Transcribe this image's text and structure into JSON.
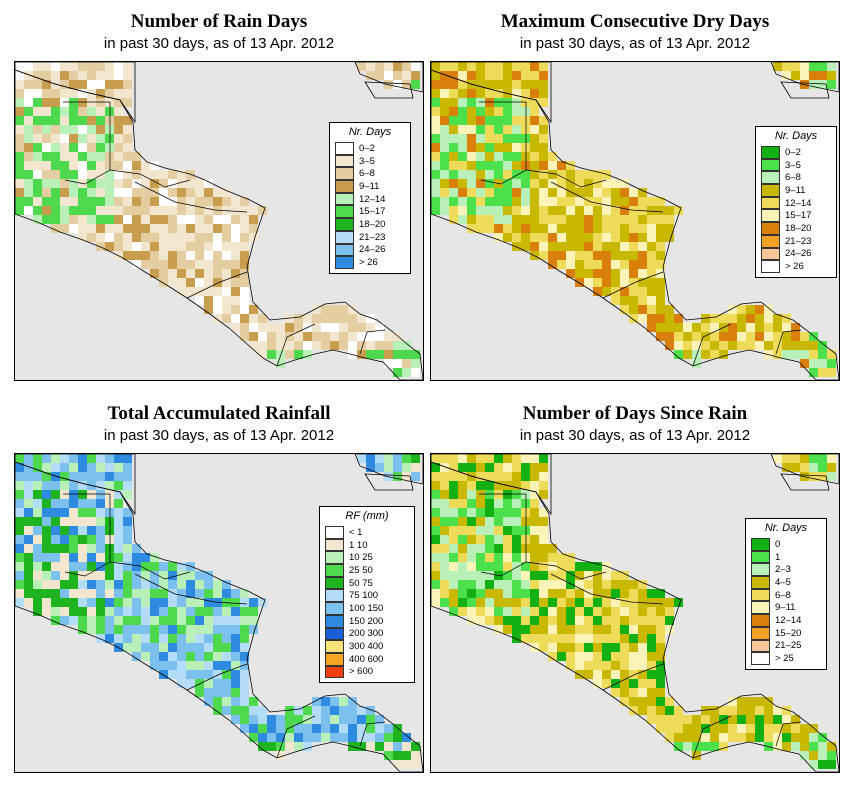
{
  "panels": [
    {
      "title": "Number of Rain Days",
      "subtitle": "in past 30 days, as of  13 Apr. 2012",
      "legend": {
        "title": "Nr. Days",
        "items": [
          {
            "label": "0–2",
            "color": "#ffffff"
          },
          {
            "label": "3–5",
            "color": "#f3e6cf"
          },
          {
            "label": "6–8",
            "color": "#e3cda1"
          },
          {
            "label": "9–11",
            "color": "#c89d4e"
          },
          {
            "label": "12–14",
            "color": "#b8f0b8"
          },
          {
            "label": "15–17",
            "color": "#4ed84e"
          },
          {
            "label": "18–20",
            "color": "#1fb41f"
          },
          {
            "label": "21–23",
            "color": "#b2dcf7"
          },
          {
            "label": "24–26",
            "color": "#7cc0ee"
          },
          {
            "label": "> 26",
            "color": "#2f8be0"
          }
        ]
      },
      "map_palette": [
        "#f3e6cf",
        "#e3cda1",
        "#f3e6cf",
        "#e3cda1",
        "#c89d4e",
        "#ffffff"
      ],
      "map_accent": [
        "#b8f0b8",
        "#4ed84e"
      ]
    },
    {
      "title": "Maximum Consecutive Dry Days",
      "subtitle": "in past 30 days, as of  13 Apr. 2012",
      "legend": {
        "title": "Nr. Days",
        "items": [
          {
            "label": "0–2",
            "color": "#12b012"
          },
          {
            "label": "3–5",
            "color": "#4ce04c"
          },
          {
            "label": "6–8",
            "color": "#b8f0b8"
          },
          {
            "label": "9–11",
            "color": "#c9b800"
          },
          {
            "label": "12–14",
            "color": "#eedb5a"
          },
          {
            "label": "15–17",
            "color": "#fbf3b8"
          },
          {
            "label": "18–20",
            "color": "#d9800a"
          },
          {
            "label": "21–23",
            "color": "#f2a227"
          },
          {
            "label": "24–26",
            "color": "#f8c89a"
          },
          {
            "label": "> 26",
            "color": "#ffffff"
          }
        ]
      },
      "map_palette": [
        "#c9b800",
        "#eedb5a",
        "#d9800a",
        "#c9b800",
        "#eedb5a",
        "#fbf3b8"
      ],
      "map_accent": [
        "#4ce04c",
        "#b8f0b8"
      ]
    },
    {
      "title": "Total Accumulated Rainfall",
      "subtitle": "in past 30 days, as of  13 Apr. 2012",
      "legend": {
        "title": "RF (mm)",
        "items": [
          {
            "label": "< 1",
            "color": "#ffffff"
          },
          {
            "label": "1   10",
            "color": "#f3e6cf"
          },
          {
            "label": "10   25",
            "color": "#b8f0b8"
          },
          {
            "label": "25   50",
            "color": "#4ed84e"
          },
          {
            "label": "50   75",
            "color": "#1fb41f"
          },
          {
            "label": "75   100",
            "color": "#b2dcf7"
          },
          {
            "label": "100   150",
            "color": "#7cc0ee"
          },
          {
            "label": "150   200",
            "color": "#2f8be0"
          },
          {
            "label": "200   300",
            "color": "#1a5fd6"
          },
          {
            "label": "300   400",
            "color": "#f8e27a"
          },
          {
            "label": "400   600",
            "color": "#f5a623"
          },
          {
            "label": "> 600",
            "color": "#f04010"
          }
        ]
      },
      "map_palette": [
        "#b2dcf7",
        "#7cc0ee",
        "#4ed84e",
        "#b8f0b8",
        "#7cc0ee",
        "#2f8be0"
      ],
      "map_accent": [
        "#1fb41f",
        "#f3e6cf"
      ]
    },
    {
      "title": "Number of Days Since Rain",
      "subtitle": "in past 30 days, as of  13 Apr. 2012",
      "legend": {
        "title": "Nr. Days",
        "items": [
          {
            "label": "0",
            "color": "#12b012"
          },
          {
            "label": "1",
            "color": "#4ce04c"
          },
          {
            "label": "2–3",
            "color": "#b8f0b8"
          },
          {
            "label": "4–5",
            "color": "#c9b800"
          },
          {
            "label": "6–8",
            "color": "#eedb5a"
          },
          {
            "label": "9–11",
            "color": "#fbf3b8"
          },
          {
            "label": "12–14",
            "color": "#d9800a"
          },
          {
            "label": "15–20",
            "color": "#f2a227"
          },
          {
            "label": "21–25",
            "color": "#f8c89a"
          },
          {
            "label": "> 25",
            "color": "#ffffff"
          }
        ]
      },
      "map_palette": [
        "#eedb5a",
        "#c9b800",
        "#fbf3b8",
        "#eedb5a",
        "#12b012",
        "#c9b800"
      ],
      "map_accent": [
        "#4ce04c",
        "#b8f0b8"
      ]
    }
  ]
}
